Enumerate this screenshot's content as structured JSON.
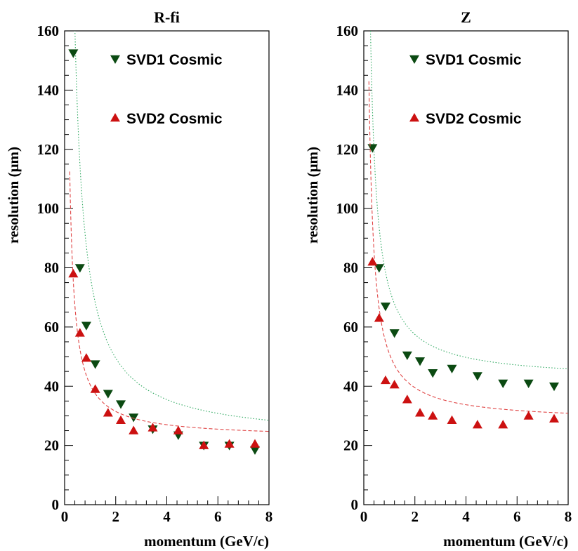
{
  "chart_data": [
    {
      "type": "scatter",
      "title": "R-fi",
      "xlabel": "momentum (GeV/c)",
      "ylabel": "resolution (μm)",
      "xlim": [
        0,
        8
      ],
      "ylim": [
        0,
        160
      ],
      "xticks": [
        "0",
        "2",
        "4",
        "6",
        "8"
      ],
      "yticks": [
        "0",
        "20",
        "40",
        "60",
        "80",
        "100",
        "120",
        "140",
        "160"
      ],
      "grid": false,
      "legend_position": "top-right",
      "series": [
        {
          "name": "SVD1 Cosmic",
          "marker": "triangle-down",
          "color": "#0b4a12",
          "fit_color": "#2ea860",
          "fit_style": "dotted",
          "fit_a": 21.5,
          "fit_b": 56.0,
          "x": [
            0.34,
            0.6,
            0.85,
            1.2,
            1.7,
            2.2,
            2.7,
            3.45,
            4.45,
            5.45,
            6.45,
            7.45
          ],
          "y": [
            152.5,
            80.0,
            60.5,
            47.5,
            37.5,
            34.0,
            29.5,
            25.5,
            23.5,
            20.0,
            20.0,
            18.5
          ]
        },
        {
          "name": "SVD2 Cosmic",
          "marker": "triangle-up",
          "color": "#cc1111",
          "fit_color": "#e04545",
          "fit_style": "dashed",
          "fit_a": 22.5,
          "fit_b": 18.0,
          "x": [
            0.34,
            0.6,
            0.85,
            1.2,
            1.7,
            2.2,
            2.7,
            3.45,
            4.45,
            5.45,
            6.45,
            7.45
          ],
          "y": [
            78.0,
            58.0,
            49.5,
            39.0,
            31.0,
            28.5,
            25.0,
            26.0,
            25.0,
            20.0,
            20.5,
            20.5
          ]
        }
      ]
    },
    {
      "type": "scatter",
      "title": "Z",
      "xlabel": "momentum (GeV/c)",
      "ylabel": "resolution (μm)",
      "xlim": [
        0,
        8
      ],
      "ylim": [
        0,
        160
      ],
      "xticks": [
        "0",
        "2",
        "4",
        "6",
        "8"
      ],
      "yticks": [
        "0",
        "20",
        "40",
        "60",
        "80",
        "100",
        "120",
        "140",
        "160"
      ],
      "grid": false,
      "legend_position": "top-right",
      "series": [
        {
          "name": "SVD1 Cosmic",
          "marker": "triangle-down",
          "color": "#0b4a12",
          "fit_color": "#2ea860",
          "fit_style": "dotted",
          "fit_a": 42.0,
          "fit_b": 31.0,
          "x": [
            0.34,
            0.6,
            0.85,
            1.2,
            1.7,
            2.2,
            2.7,
            3.45,
            4.45,
            5.45,
            6.45,
            7.45
          ],
          "y": [
            120.5,
            80.0,
            67.0,
            58.0,
            50.5,
            48.5,
            44.5,
            46.0,
            43.5,
            41.0,
            41.0,
            40.0
          ]
        },
        {
          "name": "SVD2 Cosmic",
          "marker": "triangle-up",
          "color": "#cc1111",
          "fit_color": "#e04545",
          "fit_style": "dashed",
          "fit_a": 28.0,
          "fit_b": 23.0,
          "x": [
            0.34,
            0.6,
            0.85,
            1.2,
            1.7,
            2.2,
            2.7,
            3.45,
            4.45,
            5.45,
            6.45,
            7.45
          ],
          "y": [
            82.0,
            63.0,
            42.0,
            40.5,
            35.5,
            31.0,
            30.0,
            28.5,
            27.0,
            27.0,
            30.0,
            29.0
          ]
        }
      ]
    }
  ]
}
